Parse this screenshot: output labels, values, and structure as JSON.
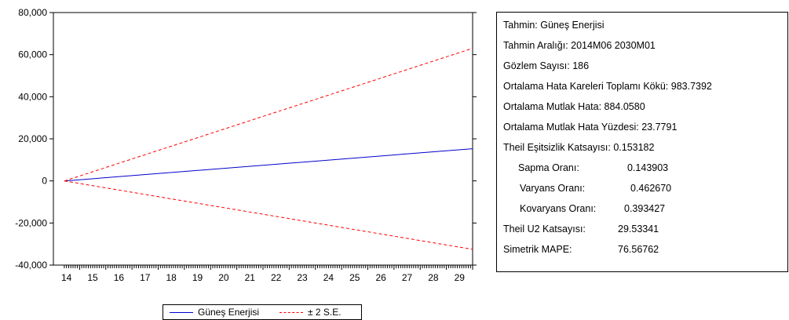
{
  "chart_data": {
    "type": "line",
    "x": [
      "14",
      "15",
      "16",
      "17",
      "18",
      "19",
      "20",
      "21",
      "22",
      "23",
      "24",
      "25",
      "26",
      "27",
      "28",
      "29"
    ],
    "xrange": [
      2014.42,
      2030.0
    ],
    "ylim": [
      -40000,
      80000
    ],
    "yticks": [
      -40000,
      -20000,
      0,
      20000,
      40000,
      60000,
      80000
    ],
    "ytick_labels": [
      "-40,000",
      "-20,000",
      "0",
      "20,000",
      "40,000",
      "60,000",
      "80,000"
    ],
    "series": [
      {
        "name": "Güneş Enerjisi",
        "color": "#0000cc",
        "style": "solid",
        "points": [
          [
            2014.42,
            0
          ],
          [
            2030.0,
            15300
          ]
        ]
      },
      {
        "name": "± 2 S.E.",
        "color": "#ff0000",
        "style": "dashed",
        "points": [
          [
            2014.42,
            0
          ],
          [
            2030.0,
            63000
          ]
        ]
      },
      {
        "name": "± 2 S.E.",
        "color": "#ff0000",
        "style": "dashed",
        "points": [
          [
            2014.42,
            0
          ],
          [
            2030.0,
            -32500
          ]
        ]
      }
    ],
    "grid": false,
    "legend_position": "bottom"
  },
  "legend": {
    "items": [
      {
        "label": "Güneş Enerjisi",
        "color": "#0000cc",
        "style": "solid"
      },
      {
        "label": "± 2 S.E.",
        "color": "#ff0000",
        "style": "dashed"
      }
    ]
  },
  "stats": [
    {
      "label": "Tahmin: Güneş Enerjisi",
      "value": ""
    },
    {
      "label": "Tahmin Aralığı: 2014M06 2030M01",
      "value": ""
    },
    {
      "label": "Gözlem Sayısı: 186",
      "value": ""
    },
    {
      "label": "Ortalama Hata Kareleri Toplamı Kökü: 983.7392",
      "value": ""
    },
    {
      "label": "Ortalama Mutlak Hata: 884.0580",
      "value": ""
    },
    {
      "label": "Ortalama Mutlak Hata Yüzdesi: 23.7791",
      "value": ""
    },
    {
      "label": "Theil Eşitsizlik Katsayısı: 0.153182",
      "value": ""
    },
    {
      "label": "Sapma Oranı:",
      "value": "0.143903"
    },
    {
      "label": "Varyans Oranı:",
      "value": "0.462670"
    },
    {
      "label": "Kovaryans Oranı:",
      "value": "0.393427"
    },
    {
      "label": "Theil U2 Katsayısı:",
      "value": "29.53341"
    },
    {
      "label": "Simetrik MAPE:",
      "value": "76.56762"
    }
  ]
}
